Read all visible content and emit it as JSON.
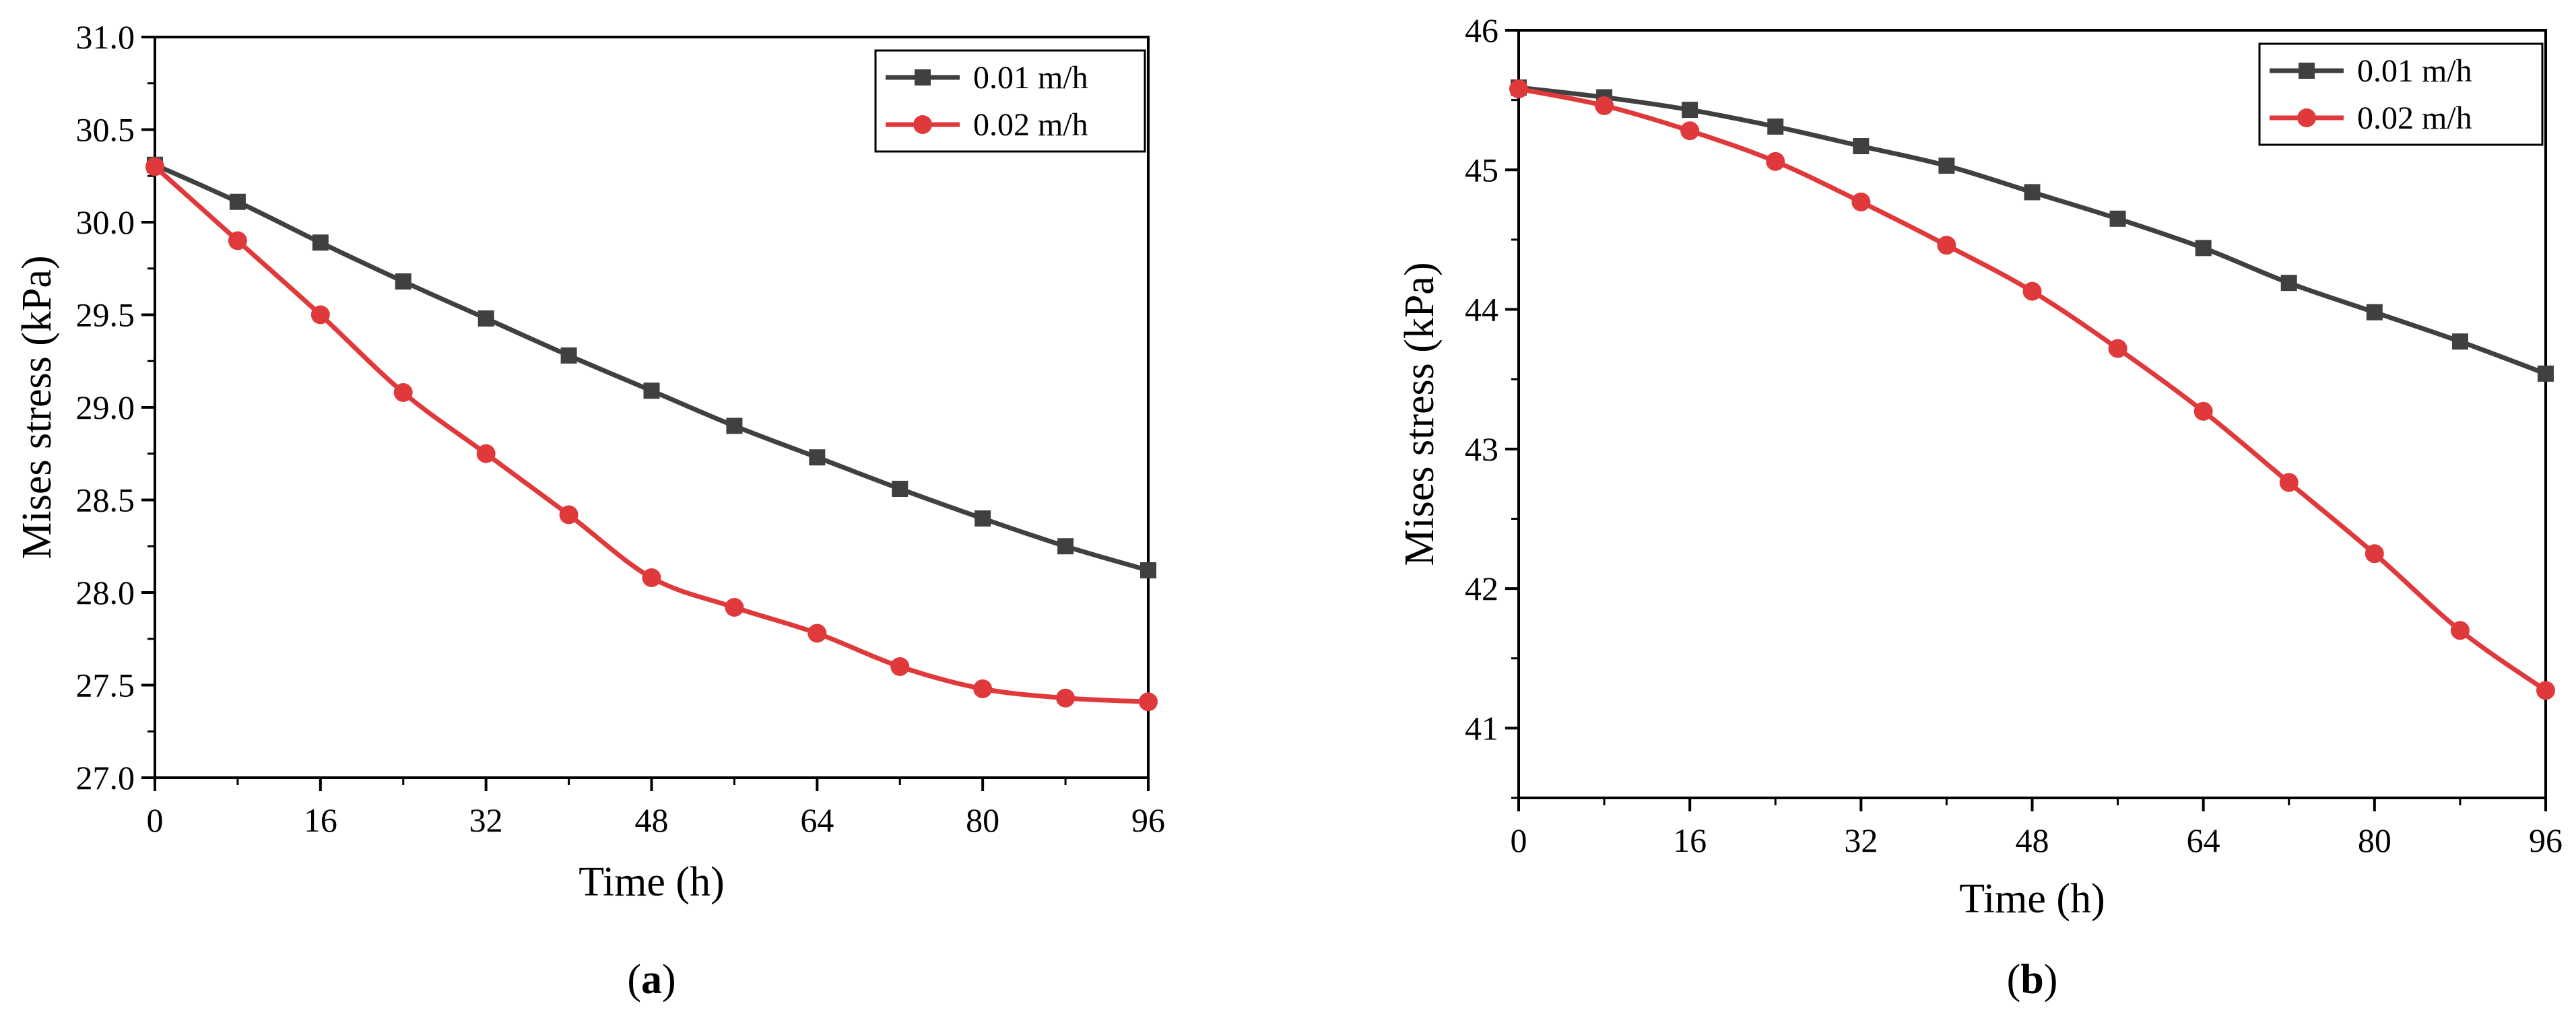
{
  "chart_data": [
    {
      "type": "line",
      "panel_label": "a",
      "title": "",
      "xlabel": "Time (h)",
      "ylabel": "Mises stress (kPa)",
      "xlim": [
        0,
        96
      ],
      "ylim": [
        27.0,
        31.0
      ],
      "xticks": [
        0,
        16,
        32,
        48,
        64,
        80,
        96
      ],
      "xtick_labels": [
        "0",
        "16",
        "32",
        "48",
        "64",
        "80",
        "96"
      ],
      "yticks": [
        27.0,
        27.5,
        28.0,
        28.5,
        29.0,
        29.5,
        30.0,
        30.5,
        31.0
      ],
      "ytick_labels": [
        "27.0",
        "27.5",
        "28.0",
        "28.5",
        "29.0",
        "29.5",
        "30.0",
        "30.5",
        "31.0"
      ],
      "grid": false,
      "legend_position": "top-right",
      "x": [
        0,
        8,
        16,
        24,
        32,
        40,
        48,
        56,
        64,
        72,
        80,
        88,
        96
      ],
      "series": [
        {
          "name": "0.01 m/h",
          "color": "#404040",
          "marker": "square",
          "values": [
            30.31,
            30.11,
            29.89,
            29.68,
            29.48,
            29.28,
            29.09,
            28.9,
            28.73,
            28.56,
            28.4,
            28.25,
            28.12
          ]
        },
        {
          "name": "0.02 m/h",
          "color": "#e0393c",
          "marker": "circle",
          "values": [
            30.3,
            29.9,
            29.5,
            29.08,
            28.75,
            28.42,
            28.08,
            27.92,
            27.78,
            27.6,
            27.48,
            27.43,
            27.41
          ]
        }
      ]
    },
    {
      "type": "line",
      "panel_label": "b",
      "title": "",
      "xlabel": "Time (h)",
      "ylabel": "Mises stress (kPa)",
      "xlim": [
        0,
        96
      ],
      "ylim": [
        40.5,
        46.0
      ],
      "xticks": [
        0,
        16,
        32,
        48,
        64,
        80,
        96
      ],
      "xtick_labels": [
        "0",
        "16",
        "32",
        "48",
        "64",
        "80",
        "96"
      ],
      "yticks": [
        41,
        42,
        43,
        44,
        45,
        46
      ],
      "ytick_labels": [
        "41",
        "42",
        "43",
        "44",
        "45",
        "46"
      ],
      "grid": false,
      "legend_position": "top-right",
      "x": [
        0,
        8,
        16,
        24,
        32,
        40,
        48,
        56,
        64,
        72,
        80,
        88,
        96
      ],
      "series": [
        {
          "name": "0.01 m/h",
          "color": "#404040",
          "marker": "square",
          "values": [
            45.59,
            45.52,
            45.43,
            45.31,
            45.17,
            45.03,
            44.84,
            44.65,
            44.44,
            44.19,
            43.98,
            43.77,
            43.54
          ]
        },
        {
          "name": "0.02 m/h",
          "color": "#e0393c",
          "marker": "circle",
          "values": [
            45.58,
            45.46,
            45.28,
            45.06,
            44.77,
            44.46,
            44.13,
            43.72,
            43.27,
            42.76,
            42.25,
            41.7,
            41.27
          ]
        }
      ]
    }
  ]
}
